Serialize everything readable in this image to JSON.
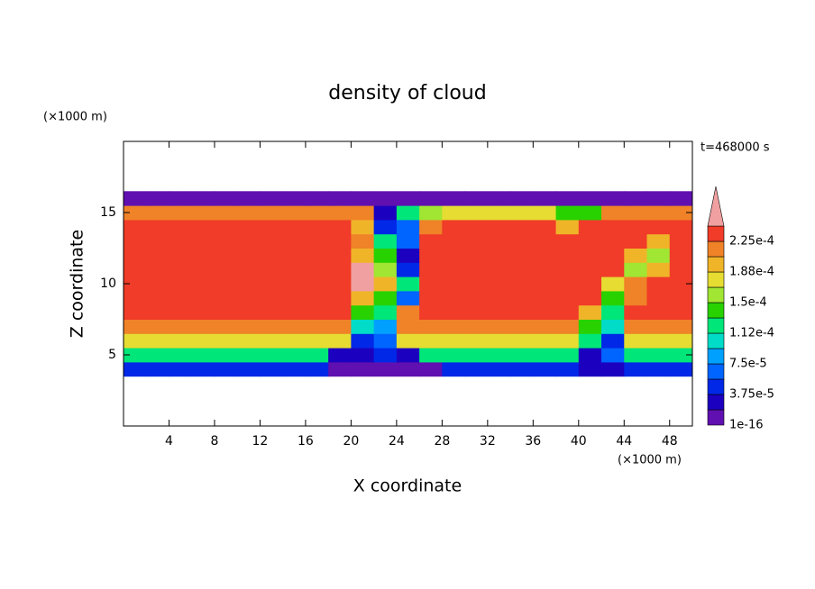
{
  "chart_data": {
    "type": "contour",
    "title": "density of cloud",
    "time_label": "t=468000 s",
    "x_label": "X coordinate",
    "x_unit": "(×1000 m)",
    "y_label": "Z coordinate",
    "y_unit": "(×1000 m)",
    "xlim": [
      0,
      50
    ],
    "xticks": [
      4,
      8,
      12,
      16,
      20,
      24,
      28,
      32,
      36,
      40,
      44,
      48
    ],
    "ylim": [
      0,
      20
    ],
    "yticks": [
      5,
      10,
      15
    ],
    "x": [
      1,
      3,
      5,
      7,
      9,
      11,
      13,
      15,
      17,
      19,
      21,
      23,
      25,
      27,
      29,
      31,
      33,
      35,
      37,
      39,
      41,
      43,
      45,
      47,
      49
    ],
    "y": [
      4,
      5,
      6,
      7,
      8,
      9,
      10,
      11,
      12,
      13,
      14,
      15,
      16
    ],
    "levels": [
      {
        "value": 1e-16,
        "label": "1e-16"
      },
      1.875e-05,
      {
        "value": 3.75e-05,
        "label": "3.75e-5"
      },
      5.625e-05,
      {
        "value": 7.5e-05,
        "label": "7.5e-5"
      },
      9.375e-05,
      {
        "value": 0.000112,
        "label": "1.12e-4"
      },
      0.000131,
      {
        "value": 0.00015,
        "label": "1.5e-4"
      },
      0.000169,
      {
        "value": 0.000188,
        "label": "1.88e-4"
      },
      0.000206,
      {
        "value": 0.000225,
        "label": "2.25e-4"
      },
      0.000244
    ],
    "colors": [
      "#6010b0",
      "#1c00c0",
      "#0028e6",
      "#0064ff",
      "#00a0ff",
      "#00dcc8",
      "#00e678",
      "#28d200",
      "#a0e632",
      "#e6dc32",
      "#f0b428",
      "#f08228",
      "#f03c28",
      "#f0a0a0"
    ],
    "values": [
      [
        4.5e-05,
        4.5e-05,
        4.5e-05,
        4.5e-05,
        4.5e-05,
        4.5e-05,
        4.5e-05,
        4.5e-05,
        4.5e-05,
        1e-05,
        1e-05,
        1e-05,
        1e-05,
        1e-05,
        4.5e-05,
        4.5e-05,
        4.5e-05,
        4.5e-05,
        4.5e-05,
        4.5e-05,
        2.5e-05,
        2.5e-05,
        4.5e-05,
        4.5e-05,
        4.5e-05
      ],
      [
        0.00012,
        0.00012,
        0.00012,
        0.00012,
        0.00012,
        0.00012,
        0.00012,
        0.00012,
        0.00012,
        2.5e-05,
        2.5e-05,
        4.5e-05,
        2.5e-05,
        0.00012,
        0.00012,
        0.00012,
        0.00012,
        0.00012,
        0.00012,
        0.00012,
        2.5e-05,
        6e-05,
        0.00012,
        0.00012,
        0.00012
      ],
      [
        0.000175,
        0.000175,
        0.000175,
        0.000175,
        0.000175,
        0.000175,
        0.000175,
        0.000175,
        0.000175,
        0.000175,
        4.5e-05,
        6e-05,
        0.000175,
        0.000175,
        0.000175,
        0.000175,
        0.000175,
        0.000175,
        0.000175,
        0.000175,
        0.00012,
        4.5e-05,
        0.000175,
        0.000175,
        0.000175
      ],
      [
        0.000215,
        0.000215,
        0.000215,
        0.000215,
        0.000215,
        0.000215,
        0.000215,
        0.000215,
        0.000215,
        0.000215,
        0.0001,
        8e-05,
        0.000215,
        0.000215,
        0.000215,
        0.000215,
        0.000215,
        0.000215,
        0.000215,
        0.000215,
        0.00014,
        0.0001,
        0.000215,
        0.000215,
        0.000215
      ],
      [
        0.00023,
        0.00023,
        0.00023,
        0.00023,
        0.00023,
        0.00023,
        0.00023,
        0.00023,
        0.00023,
        0.00023,
        0.00014,
        0.00012,
        0.000215,
        0.00023,
        0.00023,
        0.00023,
        0.00023,
        0.00023,
        0.00023,
        0.00023,
        0.000195,
        0.00012,
        0.00023,
        0.00023,
        0.00023
      ],
      [
        0.000235,
        0.000235,
        0.000235,
        0.000235,
        0.000235,
        0.000235,
        0.000235,
        0.000235,
        0.000235,
        0.000235,
        0.000195,
        0.00014,
        6e-05,
        0.000235,
        0.000235,
        0.000235,
        0.000235,
        0.000235,
        0.000235,
        0.000235,
        0.000235,
        0.00014,
        0.000215,
        0.000235,
        0.000235
      ],
      [
        0.000235,
        0.000235,
        0.000235,
        0.000235,
        0.000235,
        0.000235,
        0.000235,
        0.000235,
        0.000235,
        0.000235,
        0.00025,
        0.000195,
        0.00012,
        0.000235,
        0.000235,
        0.000235,
        0.000235,
        0.000235,
        0.000235,
        0.000235,
        0.000235,
        0.000175,
        0.000215,
        0.000235,
        0.000235
      ],
      [
        0.000235,
        0.000235,
        0.000235,
        0.000235,
        0.000235,
        0.000235,
        0.000235,
        0.000235,
        0.000235,
        0.000235,
        0.00025,
        0.00016,
        4.5e-05,
        0.000235,
        0.000235,
        0.000235,
        0.000235,
        0.000235,
        0.000235,
        0.000235,
        0.000235,
        0.000235,
        0.00016,
        0.000195,
        0.000235
      ],
      [
        0.000235,
        0.000235,
        0.000235,
        0.000235,
        0.000235,
        0.000235,
        0.000235,
        0.000235,
        0.000235,
        0.000235,
        0.000195,
        0.00014,
        2.5e-05,
        0.000235,
        0.000235,
        0.000235,
        0.000235,
        0.000235,
        0.000235,
        0.000235,
        0.000235,
        0.000235,
        0.000195,
        0.00016,
        0.000235
      ],
      [
        0.000235,
        0.000235,
        0.000235,
        0.000235,
        0.000235,
        0.000235,
        0.000235,
        0.000235,
        0.000235,
        0.000235,
        0.000215,
        0.00012,
        6e-05,
        0.000235,
        0.000235,
        0.000235,
        0.000235,
        0.000235,
        0.000235,
        0.000235,
        0.000235,
        0.000235,
        0.000235,
        0.000195,
        0.000235
      ],
      [
        0.000235,
        0.000235,
        0.000235,
        0.000235,
        0.000235,
        0.000235,
        0.000235,
        0.000235,
        0.000235,
        0.000235,
        0.000195,
        4.5e-05,
        6e-05,
        0.000215,
        0.000235,
        0.000235,
        0.000235,
        0.000235,
        0.000235,
        0.000195,
        0.000235,
        0.000235,
        0.000235,
        0.000235,
        0.000235
      ],
      [
        0.000215,
        0.000215,
        0.000215,
        0.000215,
        0.000215,
        0.000215,
        0.000215,
        0.000215,
        0.000215,
        0.000215,
        0.000215,
        2.5e-05,
        0.00012,
        0.00016,
        0.000175,
        0.000175,
        0.000175,
        0.000175,
        0.000175,
        0.00014,
        0.00014,
        0.000215,
        0.000215,
        0.000215,
        0.000215
      ],
      [
        1e-05,
        1e-05,
        1e-05,
        1e-05,
        1e-05,
        1e-05,
        1e-05,
        1e-05,
        1e-05,
        1e-05,
        1e-05,
        1e-05,
        1e-05,
        1e-05,
        1e-05,
        1e-05,
        1e-05,
        1e-05,
        1e-05,
        1e-05,
        1e-05,
        1e-05,
        1e-05,
        1e-05,
        1e-05
      ]
    ]
  }
}
